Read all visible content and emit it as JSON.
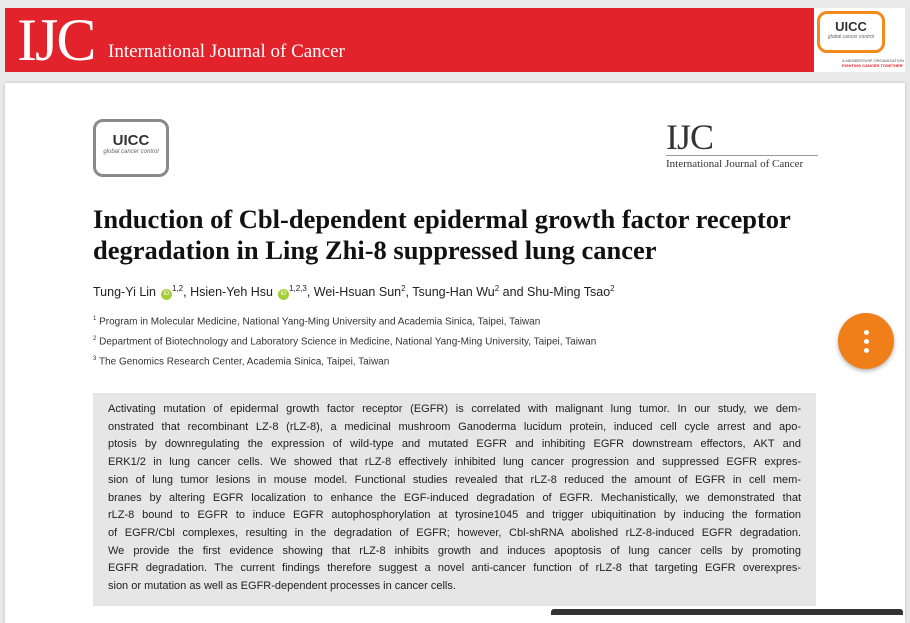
{
  "header": {
    "logo": "IJC",
    "journal": "International Journal of Cancer",
    "partner": {
      "logo": "UICC",
      "tagline": "global cancer control",
      "org_line1": "A MEMBERSHIP ORGANISATION",
      "org_line2": "FIGHTING CANCER TOGETHER"
    }
  },
  "article": {
    "uicc_logo": {
      "name": "UICC",
      "tagline": "global cancer control"
    },
    "ijc_logo": {
      "logo": "IJC",
      "journal": "International Journal of Cancer"
    },
    "title_lines": [
      "Induction of Cbl-dependent epidermal growth factor receptor",
      "degradation in Ling Zhi-8 suppressed lung cancer"
    ],
    "authors": [
      {
        "name": "Tung-Yi Lin",
        "orcid": true,
        "affil": "1,2",
        "sep": ","
      },
      {
        "name": "Hsien-Yeh Hsu",
        "orcid": true,
        "affil": "1,2,3",
        "sep": ","
      },
      {
        "name": "Wei-Hsuan Sun",
        "orcid": false,
        "affil": "2",
        "sep": ","
      },
      {
        "name": "Tsung-Han Wu",
        "orcid": false,
        "affil": "2",
        "sep": "and"
      },
      {
        "name": "Shu-Ming Tsao",
        "orcid": false,
        "affil": "2"
      }
    ],
    "affiliations": [
      {
        "num": "1",
        "text": "Program in Molecular Medicine, National Yang-Ming University and Academia Sinica, Taipei, Taiwan"
      },
      {
        "num": "2",
        "text": "Department of Biotechnology and Laboratory Science in Medicine, National Yang-Ming University, Taipei, Taiwan"
      },
      {
        "num": "3",
        "text": "The Genomics Research Center, Academia Sinica, Taipei, Taiwan"
      }
    ],
    "abstract_lines": [
      "Activating mutation of epidermal growth factor receptor (EGFR) is correlated with malignant lung tumor. In our study, we dem-",
      "onstrated that recombinant LZ-8 (rLZ-8), a medicinal mushroom Ganoderma lucidum protein, induced cell cycle arrest and apo-",
      "ptosis by downregulating the expression of wild-type and mutated EGFR and inhibiting EGFR downstream effectors, AKT and",
      "ERK1/2 in lung cancer cells. We showed that rLZ-8 effectively inhibited lung cancer progression and suppressed EGFR expres-",
      "sion of lung tumor lesions in mouse model. Functional studies revealed that rLZ-8 reduced the amount of EGFR in cell mem-",
      "branes by altering EGFR localization to enhance the EGF-induced degradation of EGFR. Mechanistically, we demonstrated that",
      "rLZ-8 bound to EGFR to induce EGFR autophosphorylation at tyrosine1045 and trigger ubiquitination by inducing the formation",
      "of EGFR/Cbl complexes, resulting in the degradation of EGFR; however, Cbl-shRNA abolished rLZ-8-induced EGFR degradation.",
      "We provide the first evidence showing that rLZ-8 inhibits growth and induces apoptosis of lung cancer cells by promoting",
      "EGFR degradation. The current findings therefore suggest a novel anti-cancer function of rLZ-8 that targeting EGFR overexpres-",
      "sion or mutation as well as EGFR-dependent processes in cancer cells."
    ]
  }
}
